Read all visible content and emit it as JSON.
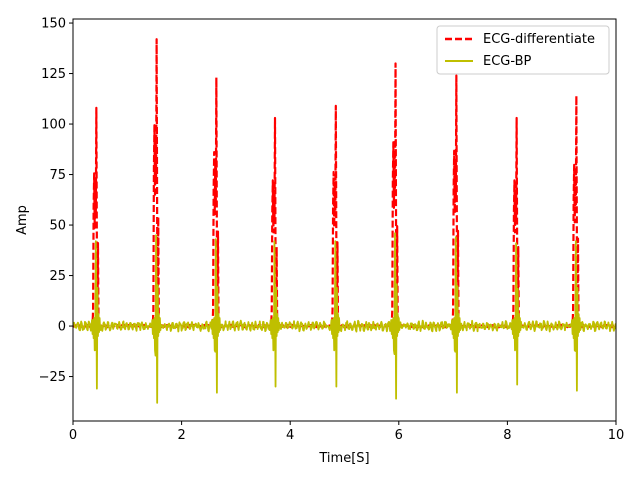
{
  "chart_data": {
    "type": "line",
    "title": "",
    "xlabel": "Time[S]",
    "ylabel": "Amp",
    "xlim": [
      0,
      10
    ],
    "ylim": [
      -47,
      152
    ],
    "xticks": [
      0,
      2,
      4,
      6,
      8,
      10
    ],
    "xtick_labels": [
      "0",
      "2",
      "4",
      "6",
      "8",
      "10"
    ],
    "yticks": [
      -25,
      0,
      25,
      50,
      75,
      100,
      125,
      150
    ],
    "ytick_labels": [
      "−25",
      "0",
      "25",
      "50",
      "75",
      "100",
      "125",
      "150"
    ],
    "grid": false,
    "legend_position": "top-right",
    "sample_rate_hz": 100,
    "series": [
      {
        "name": "ECG-differentiate",
        "color": "#ff0000",
        "style": "dashed",
        "peaks": [
          {
            "t": 0.43,
            "amp": 108
          },
          {
            "t": 1.54,
            "amp": 142
          },
          {
            "t": 2.64,
            "amp": 123
          },
          {
            "t": 3.72,
            "amp": 103
          },
          {
            "t": 4.84,
            "amp": 109
          },
          {
            "t": 5.94,
            "amp": 130
          },
          {
            "t": 7.06,
            "amp": 124
          },
          {
            "t": 8.17,
            "amp": 103
          },
          {
            "t": 9.27,
            "amp": 114
          }
        ]
      },
      {
        "name": "ECG-BP",
        "color": "#bfbf00",
        "style": "solid",
        "peaks": [
          {
            "t": 0.43,
            "amp": 42,
            "min": -31
          },
          {
            "t": 1.54,
            "amp": 45,
            "min": -38
          },
          {
            "t": 2.64,
            "amp": 43,
            "min": -33
          },
          {
            "t": 3.72,
            "amp": 42,
            "min": -30
          },
          {
            "t": 4.84,
            "amp": 42,
            "min": -30
          },
          {
            "t": 5.94,
            "amp": 46,
            "min": -36
          },
          {
            "t": 7.06,
            "amp": 44,
            "min": -33
          },
          {
            "t": 8.17,
            "amp": 41,
            "min": -29
          },
          {
            "t": 9.27,
            "amp": 42,
            "min": -32
          }
        ]
      }
    ]
  }
}
